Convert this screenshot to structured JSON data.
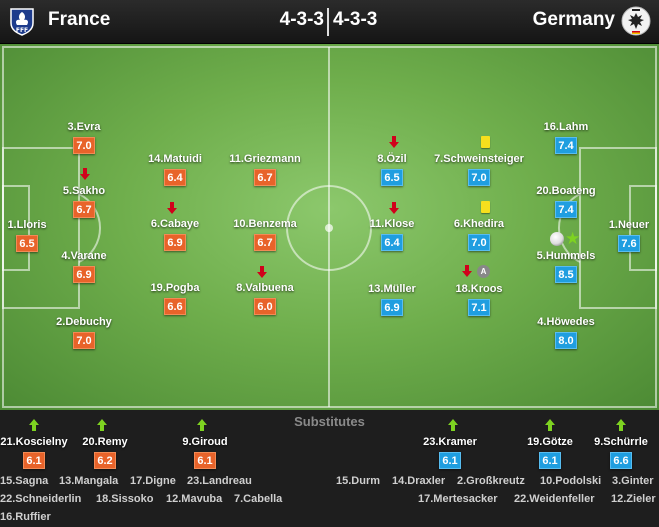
{
  "header": {
    "home_team": "France",
    "away_team": "Germany",
    "home_formation": "4-3-3",
    "away_formation": "4-3-3",
    "home_crest_text": "FFF"
  },
  "colors": {
    "home_rating": "#e8632a",
    "away_rating": "#1f9ee0",
    "sub_arrow_up": "#7ed321",
    "sub_arrow_down": "#d0021b",
    "yellow_card": "#f6df1d"
  },
  "icons": {
    "assist_label": "A"
  },
  "home_players": [
    {
      "name": "1.Lloris",
      "rating": "6.5"
    },
    {
      "name": "3.Evra",
      "rating": "7.0"
    },
    {
      "name": "5.Sakho",
      "rating": "6.7"
    },
    {
      "name": "4.Varane",
      "rating": "6.9"
    },
    {
      "name": "2.Debuchy",
      "rating": "7.0"
    },
    {
      "name": "14.Matuidi",
      "rating": "6.4"
    },
    {
      "name": "6.Cabaye",
      "rating": "6.9"
    },
    {
      "name": "19.Pogba",
      "rating": "6.6"
    },
    {
      "name": "11.Griezmann",
      "rating": "6.7"
    },
    {
      "name": "10.Benzema",
      "rating": "6.7"
    },
    {
      "name": "8.Valbuena",
      "rating": "6.0"
    }
  ],
  "away_players": [
    {
      "name": "8.Özil",
      "rating": "6.5"
    },
    {
      "name": "11.Klose",
      "rating": "6.4"
    },
    {
      "name": "13.Müller",
      "rating": "6.9"
    },
    {
      "name": "7.Schweinsteiger",
      "rating": "7.0"
    },
    {
      "name": "6.Khedira",
      "rating": "7.0"
    },
    {
      "name": "18.Kroos",
      "rating": "7.1"
    },
    {
      "name": "16.Lahm",
      "rating": "7.4"
    },
    {
      "name": "20.Boateng",
      "rating": "7.4"
    },
    {
      "name": "5.Hummels",
      "rating": "8.5"
    },
    {
      "name": "4.Höwedes",
      "rating": "8.0"
    },
    {
      "name": "1.Neuer",
      "rating": "7.6"
    }
  ],
  "substitutes": {
    "title": "Substitutes",
    "home_used": [
      {
        "name": "21.Koscielny",
        "rating": "6.1"
      },
      {
        "name": "20.Remy",
        "rating": "6.2"
      },
      {
        "name": "9.Giroud",
        "rating": "6.1"
      }
    ],
    "away_used": [
      {
        "name": "23.Kramer",
        "rating": "6.1"
      },
      {
        "name": "19.Götze",
        "rating": "6.1"
      },
      {
        "name": "9.Schürrle",
        "rating": "6.6"
      }
    ],
    "home_unused": [
      "15.Sagna",
      "13.Mangala",
      "17.Digne",
      "23.Landreau",
      "22.Schneiderlin",
      "18.Sissoko",
      "12.Mavuba",
      "7.Cabella",
      "16.Ruffier"
    ],
    "away_unused": [
      "15.Durm",
      "14.Draxler",
      "2.Großkreutz",
      "10.Podolski",
      "3.Ginter",
      "17.Mertesacker",
      "22.Weidenfeller",
      "12.Zieler"
    ]
  }
}
